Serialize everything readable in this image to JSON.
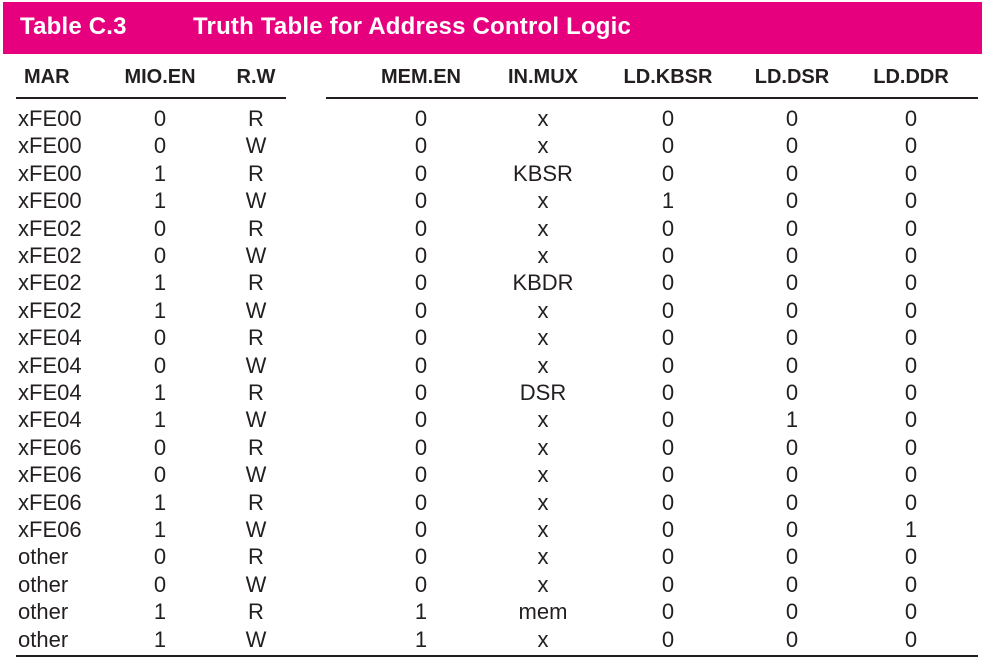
{
  "table": {
    "label": "Table C.3",
    "title": "Truth Table for Address Control Logic",
    "columns": [
      "MAR",
      "MIO.EN",
      "R.W",
      "MEM.EN",
      "IN.MUX",
      "LD.KBSR",
      "LD.DSR",
      "LD.DDR"
    ],
    "rows": [
      [
        "xFE00",
        "0",
        "R",
        "0",
        "x",
        "0",
        "0",
        "0"
      ],
      [
        "xFE00",
        "0",
        "W",
        "0",
        "x",
        "0",
        "0",
        "0"
      ],
      [
        "xFE00",
        "1",
        "R",
        "0",
        "KBSR",
        "0",
        "0",
        "0"
      ],
      [
        "xFE00",
        "1",
        "W",
        "0",
        "x",
        "1",
        "0",
        "0"
      ],
      [
        "xFE02",
        "0",
        "R",
        "0",
        "x",
        "0",
        "0",
        "0"
      ],
      [
        "xFE02",
        "0",
        "W",
        "0",
        "x",
        "0",
        "0",
        "0"
      ],
      [
        "xFE02",
        "1",
        "R",
        "0",
        "KBDR",
        "0",
        "0",
        "0"
      ],
      [
        "xFE02",
        "1",
        "W",
        "0",
        "x",
        "0",
        "0",
        "0"
      ],
      [
        "xFE04",
        "0",
        "R",
        "0",
        "x",
        "0",
        "0",
        "0"
      ],
      [
        "xFE04",
        "0",
        "W",
        "0",
        "x",
        "0",
        "0",
        "0"
      ],
      [
        "xFE04",
        "1",
        "R",
        "0",
        "DSR",
        "0",
        "0",
        "0"
      ],
      [
        "xFE04",
        "1",
        "W",
        "0",
        "x",
        "0",
        "1",
        "0"
      ],
      [
        "xFE06",
        "0",
        "R",
        "0",
        "x",
        "0",
        "0",
        "0"
      ],
      [
        "xFE06",
        "0",
        "W",
        "0",
        "x",
        "0",
        "0",
        "0"
      ],
      [
        "xFE06",
        "1",
        "R",
        "0",
        "x",
        "0",
        "0",
        "0"
      ],
      [
        "xFE06",
        "1",
        "W",
        "0",
        "x",
        "0",
        "0",
        "1"
      ],
      [
        "other",
        "0",
        "R",
        "0",
        "x",
        "0",
        "0",
        "0"
      ],
      [
        "other",
        "0",
        "W",
        "0",
        "x",
        "0",
        "0",
        "0"
      ],
      [
        "other",
        "1",
        "R",
        "1",
        "mem",
        "0",
        "0",
        "0"
      ],
      [
        "other",
        "1",
        "W",
        "1",
        "x",
        "0",
        "0",
        "0"
      ]
    ]
  }
}
